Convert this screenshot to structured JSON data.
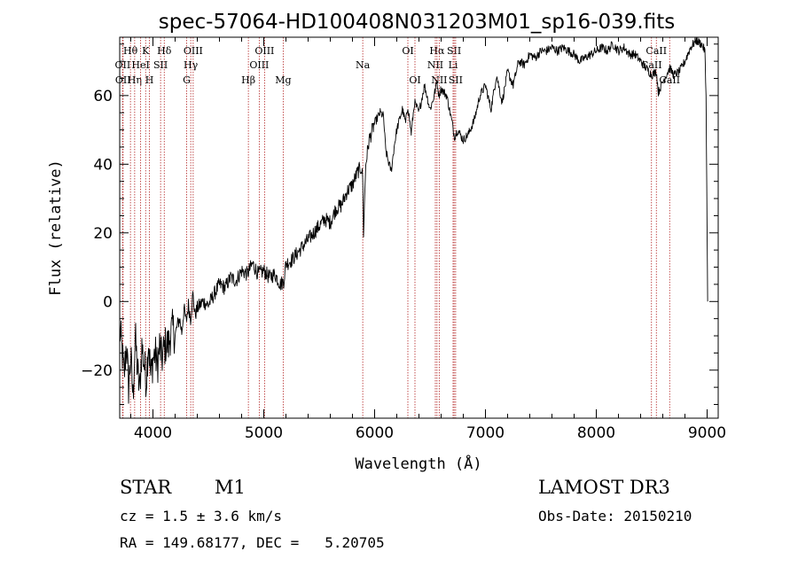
{
  "chart_data": {
    "type": "line",
    "title": "spec-57064-HD100408N031203M01_sp16-039.fits",
    "xlabel": "Wavelength (Å)",
    "ylabel": "Flux (relative)",
    "xlim": [
      3700,
      9100
    ],
    "ylim": [
      -34,
      77
    ],
    "xticks": [
      4000,
      5000,
      6000,
      7000,
      8000,
      9000
    ],
    "yticks": [
      -20,
      0,
      20,
      40,
      60
    ],
    "grid": false,
    "series": [
      {
        "line_color": "#000000",
        "x": [
          3700,
          3720,
          3740,
          3760,
          3780,
          3800,
          3820,
          3840,
          3860,
          3880,
          3900,
          3920,
          3940,
          3960,
          3980,
          4000,
          4020,
          4040,
          4060,
          4080,
          4100,
          4120,
          4140,
          4160,
          4180,
          4200,
          4220,
          4240,
          4260,
          4280,
          4300,
          4320,
          4340,
          4360,
          4380,
          4400,
          4450,
          4500,
          4550,
          4600,
          4650,
          4700,
          4750,
          4800,
          4850,
          4900,
          4950,
          5000,
          5050,
          5100,
          5150,
          5180,
          5200,
          5250,
          5300,
          5350,
          5400,
          5450,
          5500,
          5550,
          5600,
          5650,
          5700,
          5750,
          5800,
          5850,
          5880,
          5893,
          5900,
          5920,
          5950,
          6000,
          6050,
          6080,
          6100,
          6130,
          6150,
          6180,
          6200,
          6250,
          6280,
          6300,
          6330,
          6360,
          6400,
          6450,
          6500,
          6530,
          6563,
          6580,
          6600,
          6650,
          6700,
          6720,
          6750,
          6800,
          6850,
          6900,
          6950,
          7000,
          7050,
          7100,
          7150,
          7200,
          7250,
          7300,
          7350,
          7400,
          7450,
          7500,
          7550,
          7600,
          7650,
          7700,
          7750,
          7800,
          7850,
          7900,
          7950,
          8000,
          8050,
          8100,
          8150,
          8200,
          8250,
          8300,
          8350,
          8400,
          8450,
          8500,
          8542,
          8560,
          8600,
          8662,
          8700,
          8750,
          8800,
          8850,
          8900,
          8950,
          8980,
          8990,
          9000,
          9005
        ],
        "y": [
          -8,
          -14,
          -22,
          -12,
          -25,
          -16,
          -28,
          -10,
          -20,
          -26,
          -13,
          -18,
          -23,
          -11,
          -22,
          -17,
          -15,
          -19,
          -13,
          -17,
          -14,
          -12,
          -13,
          -9,
          -8,
          -10,
          -7,
          -5,
          -9,
          -2,
          -6,
          -1,
          -5,
          2,
          -4,
          -2,
          0,
          -1,
          2,
          5,
          4,
          7,
          6,
          9,
          8,
          11,
          8,
          9,
          7,
          8,
          5,
          6,
          11,
          12,
          14,
          16,
          18,
          20,
          22,
          24,
          23,
          27,
          28,
          32,
          34,
          38,
          39,
          36,
          20,
          40,
          47,
          52,
          55,
          54,
          44,
          40,
          38,
          46,
          50,
          56,
          52,
          57,
          49,
          58,
          55,
          63,
          56,
          59,
          64,
          60,
          62,
          60,
          52,
          48,
          50,
          47,
          49,
          53,
          60,
          63,
          56,
          66,
          58,
          67,
          63,
          70,
          69,
          72,
          71,
          73,
          73,
          74,
          73,
          74,
          73,
          72,
          70,
          71,
          72,
          73,
          74,
          73,
          75,
          73,
          74,
          72,
          72,
          70,
          68,
          66,
          67,
          61,
          64,
          68,
          66,
          67,
          70,
          74,
          76,
          75,
          73,
          60,
          20,
          0
        ]
      }
    ],
    "line_marks": [
      {
        "label": "Hθ",
        "x": 3797,
        "row": 0
      },
      {
        "label": "OII",
        "x": 3727,
        "row": 1
      },
      {
        "label": "OII",
        "x": 3730,
        "row": 2
      },
      {
        "label": "Hη",
        "x": 3835,
        "row": 2
      },
      {
        "label": "K",
        "x": 3934,
        "row": 0
      },
      {
        "label": "HeI",
        "x": 3889,
        "row": 1
      },
      {
        "label": "H",
        "x": 3968,
        "row": 2
      },
      {
        "label": "Hδ",
        "x": 4102,
        "row": 0
      },
      {
        "label": "SII",
        "x": 4069,
        "row": 1
      },
      {
        "label": "OIII",
        "x": 4363,
        "row": 0
      },
      {
        "label": "Hγ",
        "x": 4341,
        "row": 1
      },
      {
        "label": "G",
        "x": 4304,
        "row": 2
      },
      {
        "label": "OIII",
        "x": 5007,
        "row": 0
      },
      {
        "label": "OIII",
        "x": 4959,
        "row": 1
      },
      {
        "label": "Hβ",
        "x": 4861,
        "row": 2
      },
      {
        "label": "Mg",
        "x": 5175,
        "row": 2
      },
      {
        "label": "Na",
        "x": 5893,
        "row": 1
      },
      {
        "label": "OI",
        "x": 6300,
        "row": 0
      },
      {
        "label": "OI",
        "x": 6364,
        "row": 2
      },
      {
        "label": "Hα",
        "x": 6563,
        "row": 0
      },
      {
        "label": "SII",
        "x": 6717,
        "row": 0
      },
      {
        "label": "NII",
        "x": 6548,
        "row": 1
      },
      {
        "label": "Li",
        "x": 6708,
        "row": 1
      },
      {
        "label": "NII",
        "x": 6583,
        "row": 2
      },
      {
        "label": "SII",
        "x": 6731,
        "row": 2
      },
      {
        "label": "CaII",
        "x": 8542,
        "row": 0
      },
      {
        "label": "CaII",
        "x": 8498,
        "row": 1
      },
      {
        "label": "CaII",
        "x": 8662,
        "row": 2
      }
    ]
  },
  "info": {
    "class_label": "STAR",
    "subclass": "M1",
    "survey": "LAMOST DR3",
    "redshift": "cz = 1.5 ± 3.6 km/s",
    "obs_date": "Obs-Date: 20150210",
    "coords": "RA = 149.68177, DEC =   5.20705"
  }
}
